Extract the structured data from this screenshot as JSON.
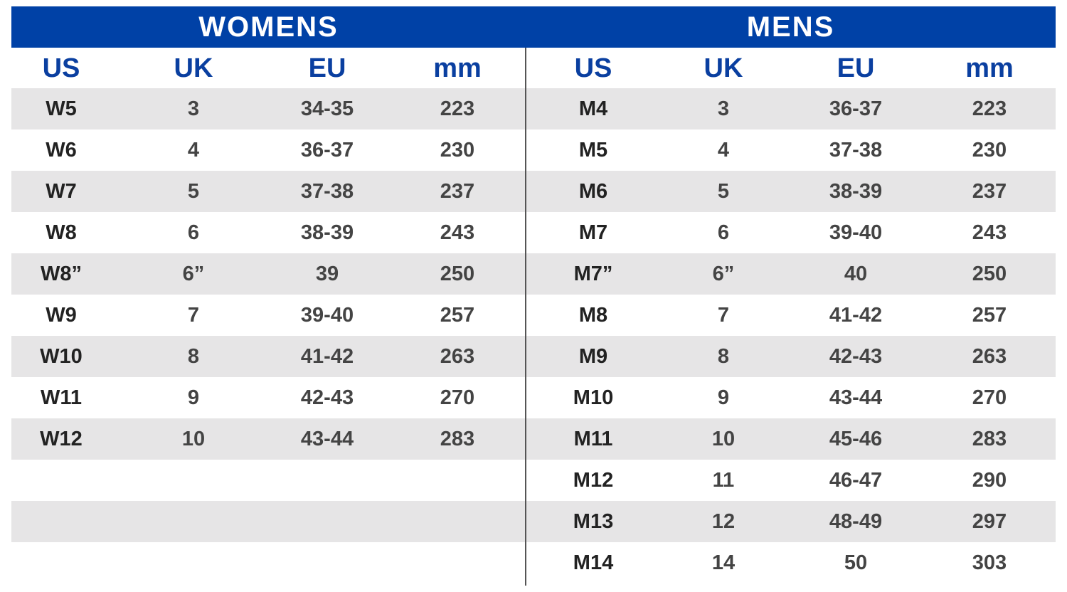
{
  "colors": {
    "banner": "#0041a6",
    "header_text": "#0a3fa0",
    "stripe": "#e6e5e6"
  },
  "womens": {
    "title": "WOMENS",
    "headers": [
      "US",
      "UK",
      "EU",
      "mm"
    ],
    "rows": [
      [
        "W5",
        "3",
        "34-35",
        "223"
      ],
      [
        "W6",
        "4",
        "36-37",
        "230"
      ],
      [
        "W7",
        "5",
        "37-38",
        "237"
      ],
      [
        "W8",
        "6",
        "38-39",
        "243"
      ],
      [
        "W8”",
        "6”",
        "39",
        "250"
      ],
      [
        "W9",
        "7",
        "39-40",
        "257"
      ],
      [
        "W10",
        "8",
        "41-42",
        "263"
      ],
      [
        "W11",
        "9",
        "42-43",
        "270"
      ],
      [
        "W12",
        "10",
        "43-44",
        "283"
      ]
    ]
  },
  "mens": {
    "title": "MENS",
    "headers": [
      "US",
      "UK",
      "EU",
      "mm"
    ],
    "rows": [
      [
        "M4",
        "3",
        "36-37",
        "223"
      ],
      [
        "M5",
        "4",
        "37-38",
        "230"
      ],
      [
        "M6",
        "5",
        "38-39",
        "237"
      ],
      [
        "M7",
        "6",
        "39-40",
        "243"
      ],
      [
        "M7”",
        "6”",
        "40",
        "250"
      ],
      [
        "M8",
        "7",
        "41-42",
        "257"
      ],
      [
        "M9",
        "8",
        "42-43",
        "263"
      ],
      [
        "M10",
        "9",
        "43-44",
        "270"
      ],
      [
        "M11",
        "10",
        "45-46",
        "283"
      ],
      [
        "M12",
        "11",
        "46-47",
        "290"
      ],
      [
        "M13",
        "12",
        "48-49",
        "297"
      ],
      [
        "M14",
        "14",
        "50",
        "303"
      ]
    ]
  }
}
